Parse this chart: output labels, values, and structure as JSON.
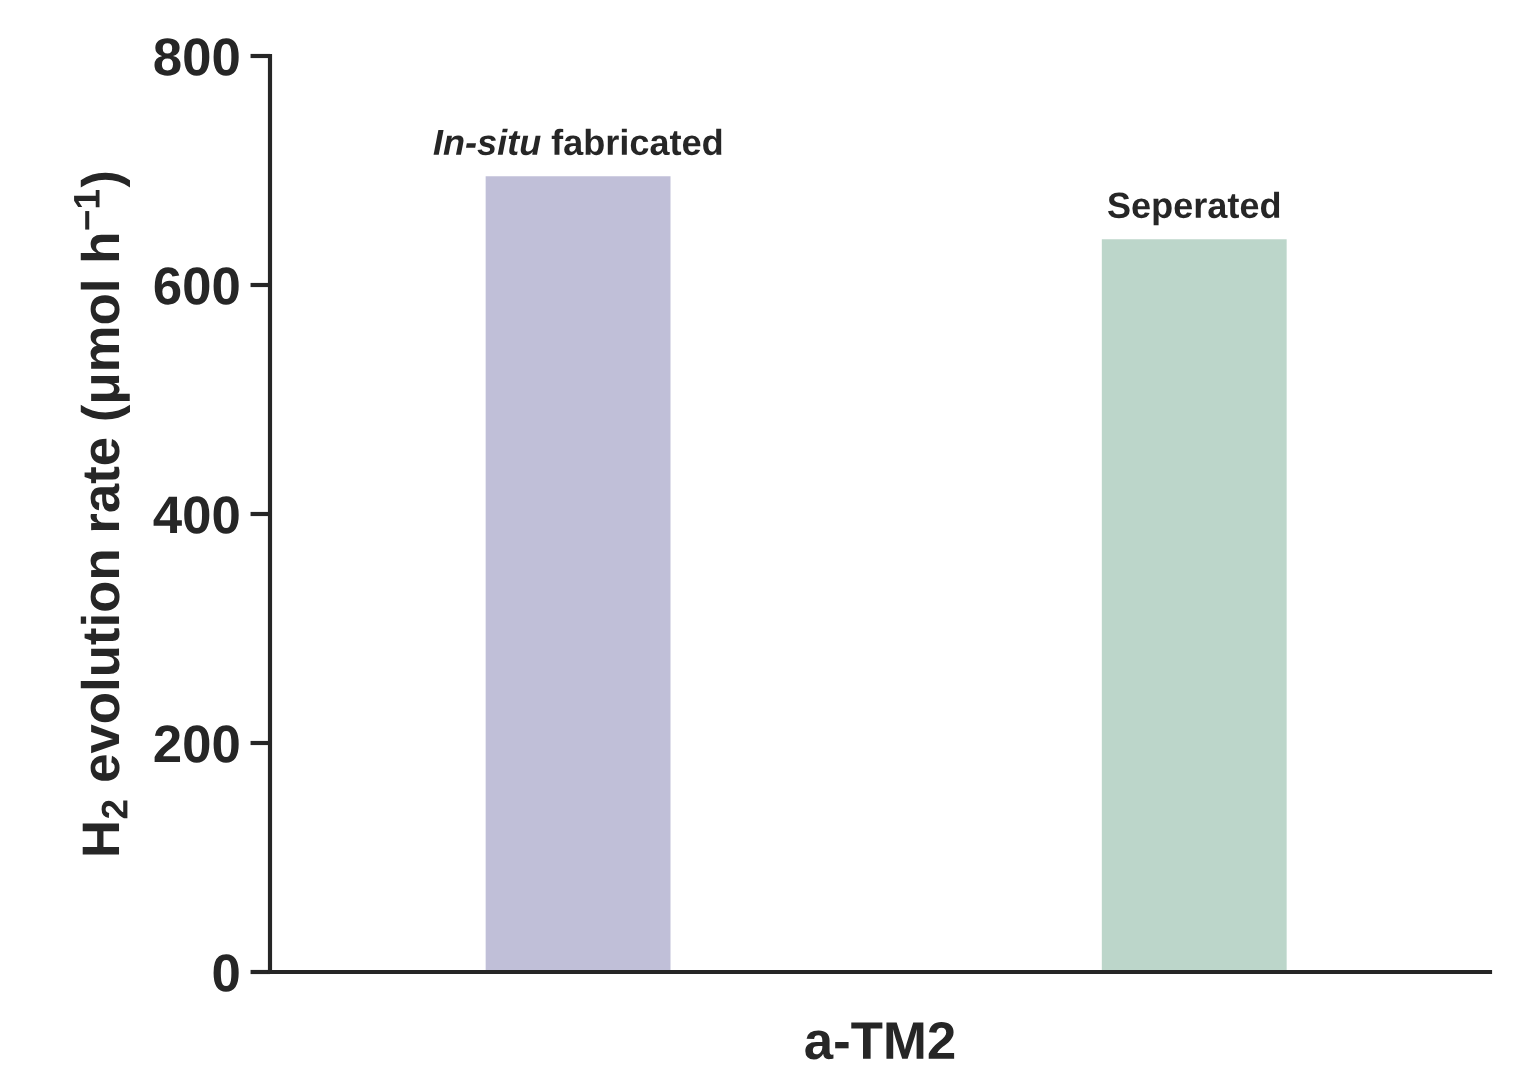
{
  "chart_data": {
    "type": "bar",
    "categories": [
      "In-situ fabricated",
      "Seperated"
    ],
    "values": [
      695,
      640
    ],
    "colors": [
      "#c0bfd8",
      "#bcd6ca"
    ],
    "xlabel": "a-TM2",
    "ylabel": "H$_{2}$ evolution rate (μmol h$^{−1}$)",
    "ylim": [
      0,
      800
    ],
    "yticks": [
      0,
      200,
      400,
      600,
      800
    ],
    "grid": false,
    "legend": false
  }
}
